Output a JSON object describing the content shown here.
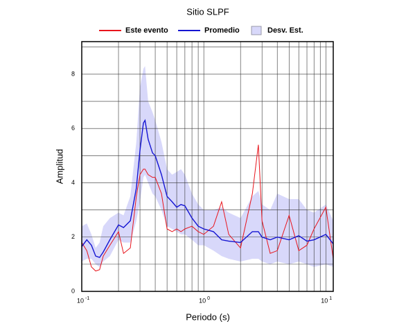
{
  "chart_data": {
    "type": "line",
    "title": "Sitio SLPF",
    "xlabel": "Periodo (s)",
    "ylabel": "Amplitud",
    "x_scale": "log",
    "grid": true,
    "xlim": [
      0.1,
      11.5
    ],
    "ylim": [
      0,
      9.2
    ],
    "xticks": [
      {
        "value": 0.1,
        "label": "10",
        "exponent": "-1"
      },
      {
        "value": 1,
        "label": "10",
        "exponent": "0"
      },
      {
        "value": 10,
        "label": "10",
        "exponent": "1"
      }
    ],
    "x_minor_ticks": [
      0.2,
      0.3,
      0.4,
      0.5,
      0.6,
      0.7,
      0.8,
      0.9,
      2,
      3,
      4,
      5,
      6,
      7,
      8,
      9
    ],
    "yticks": [
      0,
      2,
      4,
      6,
      8
    ],
    "y_minor_ticks": [
      1,
      3,
      5,
      7,
      9
    ],
    "x": [
      0.1,
      0.11,
      0.12,
      0.13,
      0.14,
      0.15,
      0.17,
      0.2,
      0.22,
      0.25,
      0.28,
      0.3,
      0.32,
      0.33,
      0.35,
      0.38,
      0.4,
      0.45,
      0.5,
      0.55,
      0.6,
      0.65,
      0.7,
      0.8,
      0.9,
      1.0,
      1.2,
      1.4,
      1.6,
      2.0,
      2.5,
      2.8,
      3.0,
      3.5,
      4.0,
      5.0,
      6.0,
      7.0,
      8.0,
      10,
      11.5
    ],
    "band": {
      "name": "Desv. Est.",
      "color": "#d8d8fa",
      "upper": [
        2.4,
        2.5,
        2.1,
        1.6,
        1.8,
        2.4,
        2.7,
        2.9,
        2.8,
        3.5,
        5.5,
        7.5,
        8.2,
        8.3,
        7.0,
        6.6,
        6.3,
        5.5,
        4.5,
        4.3,
        4.4,
        4.5,
        4.3,
        3.6,
        3.2,
        3.0,
        3.0,
        3.1,
        2.9,
        2.7,
        3.5,
        3.7,
        3.2,
        3.0,
        3.6,
        3.4,
        3.4,
        3.0,
        2.9,
        3.2,
        2.6
      ],
      "lower": [
        1.1,
        1.2,
        1.2,
        1.0,
        0.9,
        1.1,
        1.3,
        1.9,
        1.8,
        1.8,
        2.6,
        3.3,
        4.2,
        4.3,
        4.0,
        3.6,
        3.5,
        3.0,
        2.4,
        2.3,
        2.2,
        2.1,
        2.1,
        1.9,
        1.7,
        1.7,
        1.5,
        1.3,
        1.2,
        1.1,
        1.2,
        1.2,
        1.1,
        1.0,
        1.1,
        1.0,
        1.1,
        1.0,
        0.9,
        1.0,
        0.9
      ]
    },
    "series": [
      {
        "name": "Este evento",
        "color": "#e8141c",
        "values": [
          1.8,
          1.5,
          0.9,
          0.75,
          0.8,
          1.3,
          1.7,
          2.2,
          1.4,
          1.6,
          3.5,
          4.3,
          4.5,
          4.5,
          4.3,
          4.2,
          4.2,
          3.6,
          2.3,
          2.2,
          2.3,
          2.2,
          2.3,
          2.4,
          2.2,
          2.1,
          2.4,
          3.3,
          2.1,
          1.6,
          3.6,
          5.4,
          2.6,
          1.4,
          1.5,
          2.8,
          1.5,
          1.7,
          2.3,
          3.1,
          1.2
        ]
      },
      {
        "name": "Promedio",
        "color": "#1414d2",
        "values": [
          1.65,
          1.9,
          1.7,
          1.3,
          1.25,
          1.45,
          1.9,
          2.45,
          2.35,
          2.6,
          3.8,
          5.2,
          6.2,
          6.3,
          5.6,
          5.1,
          5.0,
          4.3,
          3.5,
          3.3,
          3.1,
          3.2,
          3.15,
          2.7,
          2.4,
          2.3,
          2.2,
          1.9,
          1.85,
          1.8,
          2.2,
          2.2,
          2.0,
          1.9,
          2.0,
          1.9,
          2.05,
          1.85,
          1.9,
          2.1,
          1.75
        ]
      }
    ]
  }
}
